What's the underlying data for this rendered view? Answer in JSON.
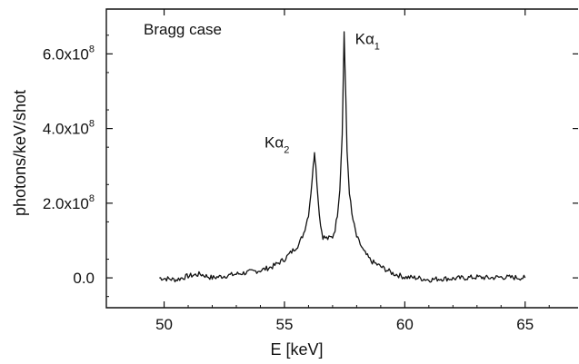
{
  "chart_data": {
    "type": "line",
    "annotation": "Bragg case",
    "xlabel": "E [keV]",
    "ylabel": "photons/keV/shot",
    "xlim": [
      47.6,
      67.2
    ],
    "ylim": [
      -0.8,
      7.2
    ],
    "y_multiplier_exponent": "8",
    "grid": false,
    "x_ticks": [
      {
        "value": 50,
        "label": "50"
      },
      {
        "value": 55,
        "label": "55"
      },
      {
        "value": 60,
        "label": "60"
      },
      {
        "value": 65,
        "label": "65"
      }
    ],
    "y_ticks": [
      {
        "value": 0,
        "label": "0.0",
        "exp": ""
      },
      {
        "value": 2,
        "label": "2.0x10",
        "exp": "8"
      },
      {
        "value": 4,
        "label": "4.0x10",
        "exp": "8"
      },
      {
        "value": 6,
        "label": "6.0x10",
        "exp": "8"
      }
    ],
    "peaks": [
      {
        "name_main": "Kα",
        "name_sub": "2",
        "x": 56.25,
        "y": 3.4
      },
      {
        "name_main": "Kα",
        "name_sub": "1",
        "x": 57.48,
        "y": 6.6
      }
    ],
    "series": [
      {
        "x": [
          49.8,
          50.5,
          51.0,
          51.5,
          52.0,
          52.5,
          53.0,
          53.5,
          54.0,
          54.5,
          55.0,
          55.3,
          55.6,
          55.8,
          56.0,
          56.1,
          56.2,
          56.25,
          56.3,
          56.4,
          56.5,
          56.6,
          56.8,
          57.0,
          57.1,
          57.2,
          57.3,
          57.4,
          57.48,
          57.55,
          57.6,
          57.7,
          57.8,
          58.0,
          58.3,
          58.6,
          59.0,
          59.5,
          60.0,
          60.5,
          61.0,
          61.5,
          62.0,
          62.5,
          63.0,
          63.5,
          64.0,
          64.5,
          65.0
        ],
        "y": [
          0.0,
          -0.05,
          0.05,
          0.1,
          0.0,
          0.05,
          0.1,
          0.15,
          0.2,
          0.3,
          0.5,
          0.7,
          0.9,
          1.2,
          1.7,
          2.3,
          3.0,
          3.4,
          3.0,
          2.1,
          1.4,
          1.1,
          1.05,
          1.1,
          1.3,
          1.7,
          2.4,
          3.9,
          6.6,
          4.8,
          3.4,
          2.3,
          1.7,
          1.1,
          0.7,
          0.45,
          0.3,
          0.12,
          0.02,
          0.0,
          -0.05,
          -0.02,
          -0.02,
          0.0,
          0.02,
          0.0,
          0.02,
          0.01,
          0.0
        ]
      }
    ]
  }
}
